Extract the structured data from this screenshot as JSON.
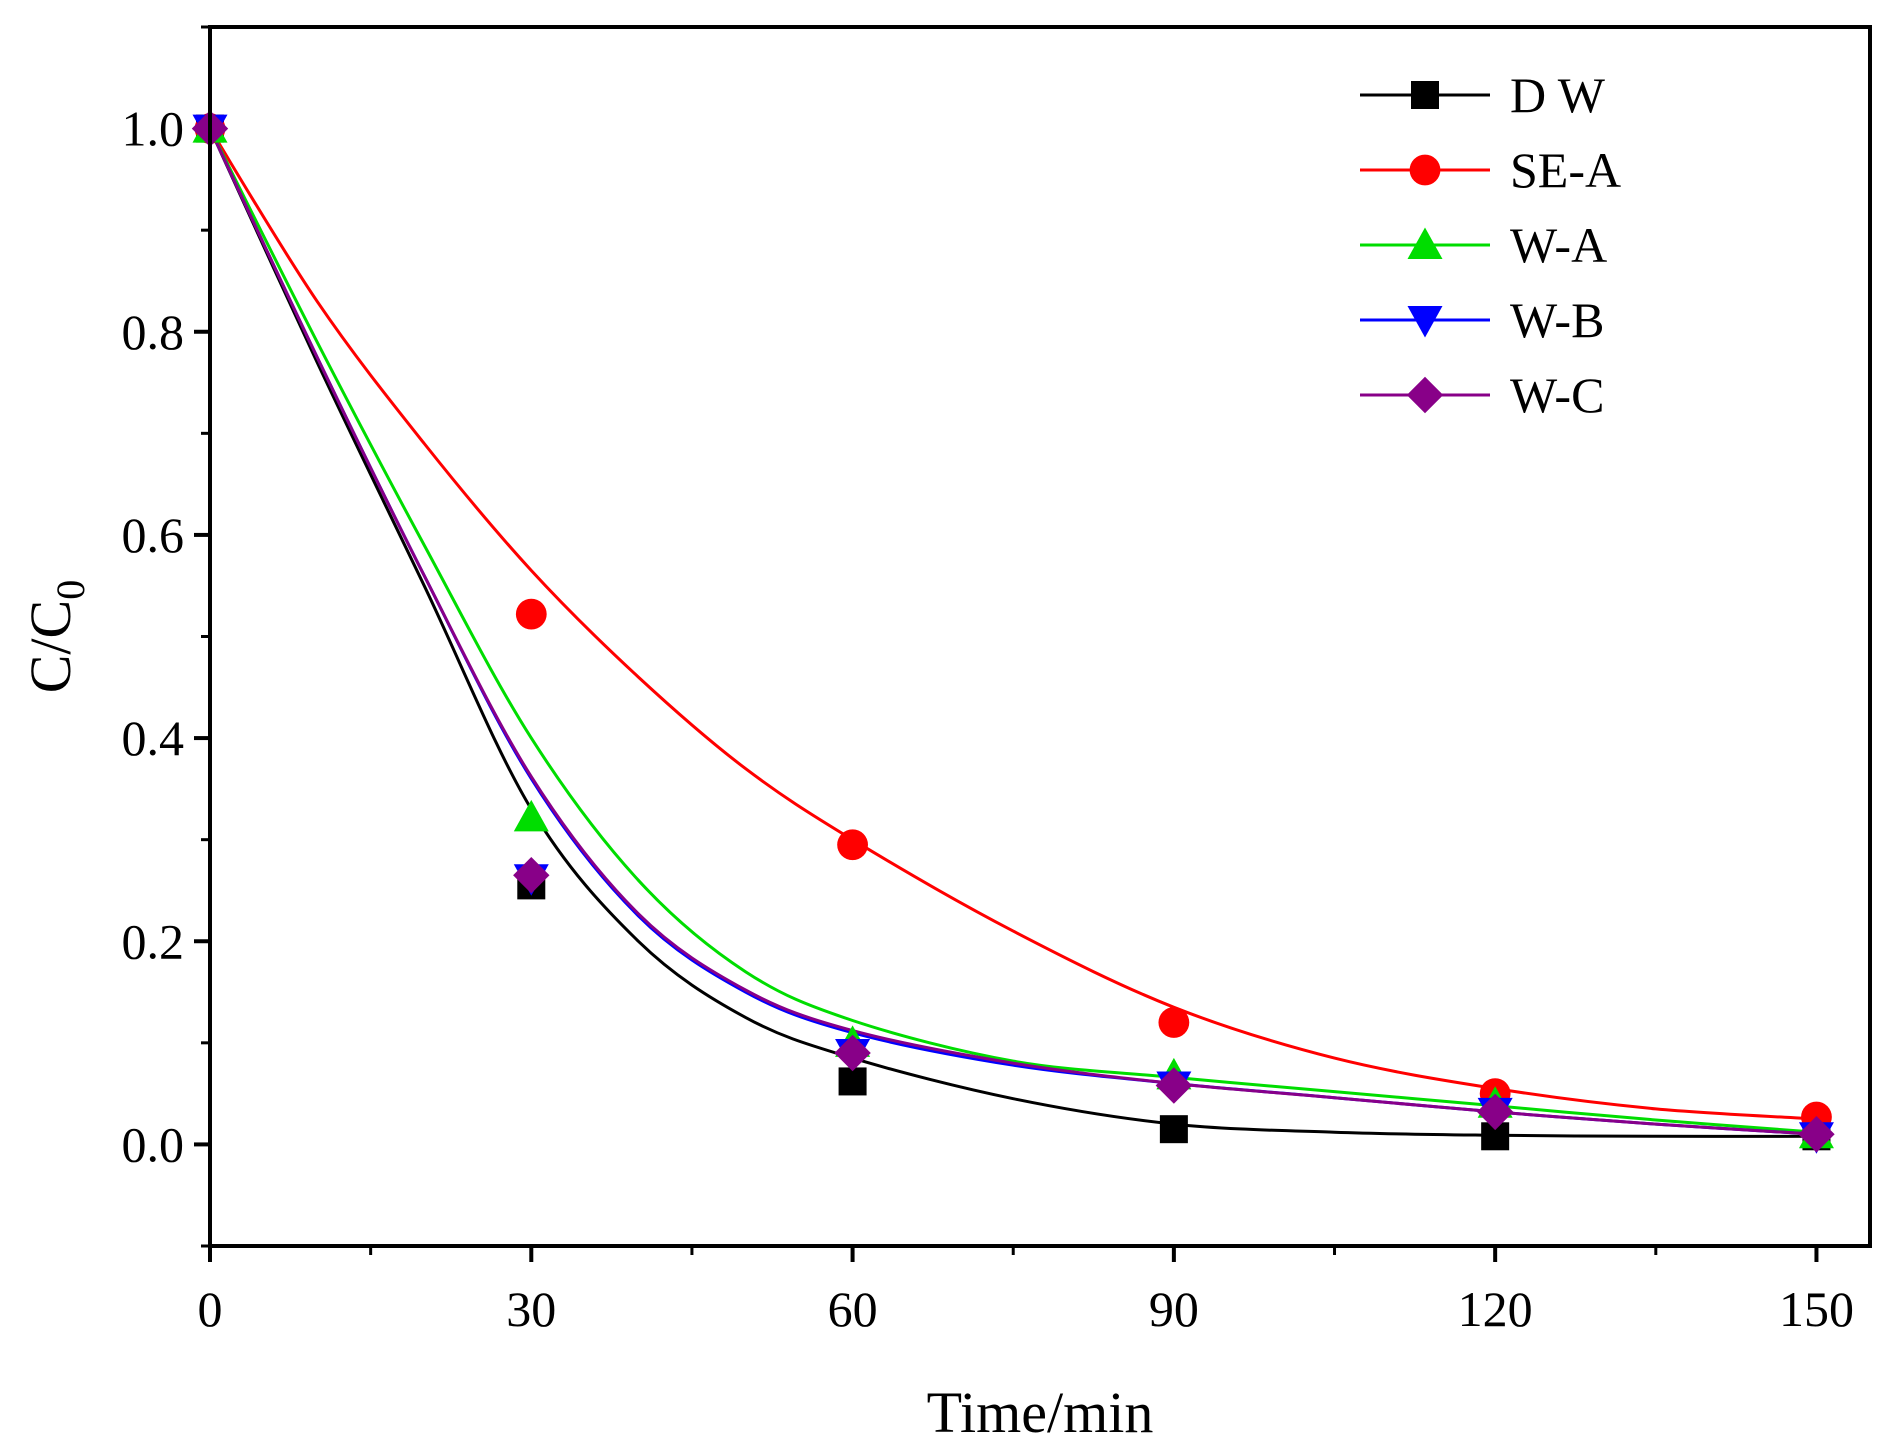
{
  "chart_data": {
    "type": "scatter",
    "xlabel": "Time/min",
    "ylabel": {
      "main": "C/C",
      "subscript": "0"
    },
    "xlim": [
      0,
      155
    ],
    "ylim": [
      -0.1,
      1.1
    ],
    "xticks": [
      0,
      30,
      60,
      90,
      120,
      150
    ],
    "xtick_labels": [
      "0",
      "30",
      "60",
      "90",
      "120",
      "150"
    ],
    "yticks": [
      0.0,
      0.2,
      0.4,
      0.6,
      0.8,
      1.0
    ],
    "ytick_labels": [
      "0.0",
      "0.2",
      "0.4",
      "0.6",
      "0.8",
      "1.0"
    ],
    "legend_position": "top-right",
    "grid": false,
    "x": [
      0,
      30,
      60,
      90,
      120,
      150
    ],
    "series": [
      {
        "name": "D W",
        "color": "#000000",
        "marker": "square",
        "values": [
          1.0,
          0.255,
          0.062,
          0.015,
          0.008,
          0.008
        ],
        "fit": [
          [
            0,
            1.0
          ],
          [
            10,
            0.77
          ],
          [
            20,
            0.55
          ],
          [
            30,
            0.33
          ],
          [
            40,
            0.2
          ],
          [
            50,
            0.125
          ],
          [
            60,
            0.085
          ],
          [
            75,
            0.045
          ],
          [
            90,
            0.02
          ],
          [
            105,
            0.012
          ],
          [
            120,
            0.009
          ],
          [
            135,
            0.008
          ],
          [
            150,
            0.008
          ]
        ]
      },
      {
        "name": "SE-A",
        "color": "#ff0000",
        "marker": "circle",
        "values": [
          1.0,
          0.522,
          0.295,
          0.12,
          0.05,
          0.027
        ],
        "fit": [
          [
            0,
            1.0
          ],
          [
            10,
            0.83
          ],
          [
            20,
            0.69
          ],
          [
            30,
            0.565
          ],
          [
            40,
            0.46
          ],
          [
            50,
            0.37
          ],
          [
            60,
            0.3
          ],
          [
            75,
            0.21
          ],
          [
            90,
            0.135
          ],
          [
            105,
            0.085
          ],
          [
            120,
            0.055
          ],
          [
            135,
            0.035
          ],
          [
            150,
            0.025
          ]
        ]
      },
      {
        "name": "W-A",
        "color": "#00dd00",
        "marker": "triangle-up",
        "values": [
          1.0,
          0.322,
          0.1,
          0.068,
          0.04,
          0.01
        ],
        "fit": [
          [
            0,
            1.0
          ],
          [
            10,
            0.79
          ],
          [
            20,
            0.59
          ],
          [
            30,
            0.4
          ],
          [
            40,
            0.26
          ],
          [
            50,
            0.17
          ],
          [
            60,
            0.122
          ],
          [
            75,
            0.082
          ],
          [
            90,
            0.066
          ],
          [
            105,
            0.052
          ],
          [
            120,
            0.038
          ],
          [
            135,
            0.024
          ],
          [
            150,
            0.012
          ]
        ]
      },
      {
        "name": "W-B",
        "color": "#0000ff",
        "marker": "triangle-down",
        "values": [
          1.0,
          0.262,
          0.09,
          0.058,
          0.032,
          0.008
        ],
        "fit": [
          [
            0,
            1.0
          ],
          [
            10,
            0.775
          ],
          [
            20,
            0.56
          ],
          [
            30,
            0.36
          ],
          [
            40,
            0.225
          ],
          [
            50,
            0.15
          ],
          [
            60,
            0.11
          ],
          [
            75,
            0.078
          ],
          [
            90,
            0.06
          ],
          [
            105,
            0.046
          ],
          [
            120,
            0.032
          ],
          [
            135,
            0.02
          ],
          [
            150,
            0.01
          ]
        ]
      },
      {
        "name": "W-C",
        "color": "#880088",
        "marker": "diamond",
        "values": [
          1.0,
          0.265,
          0.09,
          0.058,
          0.032,
          0.01
        ],
        "fit": [
          [
            0,
            1.0
          ],
          [
            10,
            0.775
          ],
          [
            20,
            0.56
          ],
          [
            30,
            0.362
          ],
          [
            40,
            0.227
          ],
          [
            50,
            0.152
          ],
          [
            60,
            0.112
          ],
          [
            75,
            0.08
          ],
          [
            90,
            0.06
          ],
          [
            105,
            0.046
          ],
          [
            120,
            0.032
          ],
          [
            135,
            0.02
          ],
          [
            150,
            0.01
          ]
        ]
      }
    ]
  }
}
